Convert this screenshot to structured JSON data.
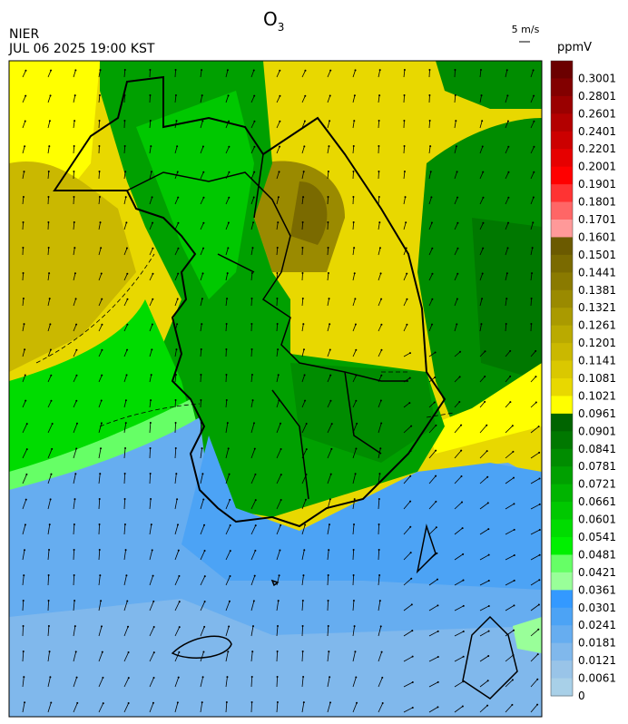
{
  "header": {
    "title": "O",
    "title_sub": "3",
    "agency": "NIER",
    "datetime": "JUL 06 2025 19:00 KST",
    "wind_scale": "5 m/s"
  },
  "colorbar": {
    "unit": "ppmV",
    "levels": [
      {
        "label": "0.3001",
        "color": "#6b0000"
      },
      {
        "label": "0.2801",
        "color": "#820000"
      },
      {
        "label": "0.2601",
        "color": "#9a0000"
      },
      {
        "label": "0.2401",
        "color": "#b30000"
      },
      {
        "label": "0.2201",
        "color": "#cc0000"
      },
      {
        "label": "0.2001",
        "color": "#e60000"
      },
      {
        "label": "0.1901",
        "color": "#ff0000"
      },
      {
        "label": "0.1801",
        "color": "#ff3333"
      },
      {
        "label": "0.1701",
        "color": "#ff6666"
      },
      {
        "label": "0.1601",
        "color": "#ff9999"
      },
      {
        "label": "0.1501",
        "color": "#6b5a00"
      },
      {
        "label": "0.1441",
        "color": "#7a6a00"
      },
      {
        "label": "0.1381",
        "color": "#8a7a00"
      },
      {
        "label": "0.1321",
        "color": "#9a8a00"
      },
      {
        "label": "0.1261",
        "color": "#aa9a00"
      },
      {
        "label": "0.1201",
        "color": "#baaa00"
      },
      {
        "label": "0.1141",
        "color": "#cab800"
      },
      {
        "label": "0.1081",
        "color": "#dac800"
      },
      {
        "label": "0.1021",
        "color": "#e8d800"
      },
      {
        "label": "0.0961",
        "color": "#ffff00"
      },
      {
        "label": "0.0901",
        "color": "#006400"
      },
      {
        "label": "0.0841",
        "color": "#007800"
      },
      {
        "label": "0.0781",
        "color": "#008c00"
      },
      {
        "label": "0.0721",
        "color": "#00a000"
      },
      {
        "label": "0.0661",
        "color": "#00b400"
      },
      {
        "label": "0.0601",
        "color": "#00c800"
      },
      {
        "label": "0.0541",
        "color": "#00dc00"
      },
      {
        "label": "0.0481",
        "color": "#00f000"
      },
      {
        "label": "0.0421",
        "color": "#66ff66"
      },
      {
        "label": "0.0361",
        "color": "#99ff99"
      },
      {
        "label": "0.0301",
        "color": "#3399ff"
      },
      {
        "label": "0.0241",
        "color": "#4ca3f5"
      },
      {
        "label": "0.0181",
        "color": "#66adf0"
      },
      {
        "label": "0.0121",
        "color": "#80b8ec"
      },
      {
        "label": "0.0061",
        "color": "#99c4e8"
      },
      {
        "label": "0",
        "color": "#a8d0e8"
      }
    ]
  }
}
